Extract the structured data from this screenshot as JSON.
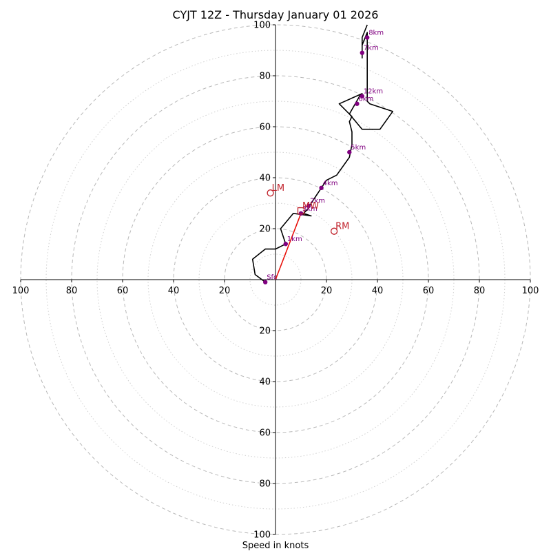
{
  "chart_data": {
    "type": "hodograph",
    "title": "CYJT 12Z - Thursday January 01 2026",
    "xlabel": "Speed in knots",
    "range": [
      -100,
      100
    ],
    "major_rings": [
      20,
      40,
      60,
      80,
      100
    ],
    "minor_rings": [
      10,
      30,
      50,
      70,
      90
    ],
    "x_ticks": [
      {
        "value": -100,
        "label": "100"
      },
      {
        "value": -80,
        "label": "80"
      },
      {
        "value": -60,
        "label": "60"
      },
      {
        "value": -40,
        "label": "40"
      },
      {
        "value": -20,
        "label": "20"
      },
      {
        "value": 20,
        "label": "20"
      },
      {
        "value": 40,
        "label": "40"
      },
      {
        "value": 60,
        "label": "60"
      },
      {
        "value": 80,
        "label": "80"
      },
      {
        "value": 100,
        "label": "100"
      }
    ],
    "y_ticks": [
      {
        "value": 100,
        "label": "100"
      },
      {
        "value": 80,
        "label": "80"
      },
      {
        "value": 60,
        "label": "60"
      },
      {
        "value": 40,
        "label": "40"
      },
      {
        "value": 20,
        "label": "20"
      },
      {
        "value": -20,
        "label": "20"
      },
      {
        "value": -40,
        "label": "40"
      },
      {
        "value": -60,
        "label": "60"
      },
      {
        "value": -80,
        "label": "80"
      },
      {
        "value": -100,
        "label": "100"
      }
    ],
    "trace_uv_kt": [
      [
        -4,
        -1
      ],
      [
        -8,
        2
      ],
      [
        -9,
        8
      ],
      [
        -4,
        12
      ],
      [
        0,
        12
      ],
      [
        4,
        14
      ],
      [
        2,
        20
      ],
      [
        7,
        26
      ],
      [
        14,
        25
      ],
      [
        11,
        26
      ],
      [
        13,
        28
      ],
      [
        14,
        30
      ],
      [
        18,
        36
      ],
      [
        20,
        39
      ],
      [
        24,
        41
      ],
      [
        29,
        48
      ],
      [
        30,
        53
      ],
      [
        30,
        58
      ],
      [
        29,
        62
      ],
      [
        30,
        64
      ],
      [
        25,
        69
      ],
      [
        34,
        73
      ],
      [
        33,
        72
      ],
      [
        29,
        65
      ],
      [
        34,
        59
      ],
      [
        41,
        59
      ],
      [
        46,
        66
      ],
      [
        37,
        69
      ],
      [
        36,
        70
      ],
      [
        36,
        77
      ],
      [
        36,
        90
      ],
      [
        36,
        97
      ],
      [
        34,
        92
      ],
      [
        34,
        87
      ],
      [
        34,
        95
      ],
      [
        36,
        100
      ]
    ],
    "height_markers": [
      {
        "label": "Sfc",
        "u": -4,
        "v": -1
      },
      {
        "label": "1km",
        "u": 4,
        "v": 14
      },
      {
        "label": "3km",
        "u": 10,
        "v": 26
      },
      {
        "label": "2km",
        "u": 13,
        "v": 29
      },
      {
        "label": "4km",
        "u": 18,
        "v": 36
      },
      {
        "label": "5km",
        "u": 29,
        "v": 50
      },
      {
        "label": "6km",
        "u": 32,
        "v": 69
      },
      {
        "label": "12km",
        "u": 34,
        "v": 72
      },
      {
        "label": "7km",
        "u": 34,
        "v": 89
      },
      {
        "label": "8km",
        "u": 36,
        "v": 95
      }
    ],
    "shear_vector": {
      "from": [
        0,
        0
      ],
      "to": [
        10,
        26
      ]
    },
    "storm_motion": [
      {
        "label": "LM",
        "u": -2,
        "v": 34,
        "shape": "circle"
      },
      {
        "label": "RM",
        "u": 23,
        "v": 19,
        "shape": "circle"
      },
      {
        "label": "MW",
        "u": 10,
        "v": 27,
        "shape": "square"
      }
    ],
    "colors": {
      "trace": "#000000",
      "shear": "#e8110b",
      "markers": "#800080",
      "storm_motion": "#c0202a",
      "rings": "#b8b8b8"
    }
  }
}
